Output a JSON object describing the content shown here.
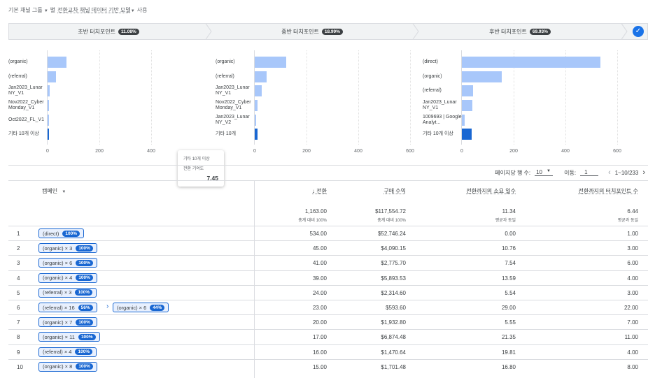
{
  "topbar": {
    "part1": "기본 채널 그룹",
    "part2": "별",
    "part3": "전환교차 채널 데이터 기반 모델",
    "part4": "사용"
  },
  "stages": [
    {
      "label": "초반 터치포인트",
      "pct": "11.08%"
    },
    {
      "label": "중반 터치포인트",
      "pct": "18.99%"
    },
    {
      "label": "후반 터치포인트",
      "pct": "69.93%"
    }
  ],
  "chart_data": [
    {
      "type": "bar",
      "categories": [
        "(organic)",
        "(referral)",
        "Jan2023_Lunar NY_V1",
        "Nov2022_Cyber Monday_V1",
        "Oct2022_FL_V1",
        "기타 10개 이상"
      ],
      "values": [
        72,
        33,
        8,
        3,
        2,
        5
      ],
      "xticks": [
        "0",
        "200",
        "400"
      ],
      "xlim": [
        0,
        600
      ]
    },
    {
      "type": "bar",
      "categories": [
        "(organic)",
        "(referral)",
        "Jan2023_Lunar NY_V1",
        "Nov2022_Cyber Monday_V1",
        "Jan2023_Lunar NY_V2",
        "기타 10개"
      ],
      "values": [
        122,
        46,
        28,
        10,
        6,
        10
      ],
      "xticks": [
        "0",
        "200",
        "400",
        "600"
      ],
      "xlim": [
        0,
        600
      ]
    },
    {
      "type": "bar",
      "categories": [
        "(direct)",
        "(organic)",
        "(referral)",
        "Jan2023_Lunar NY_V1",
        "1009693 | Google Analyt...",
        "기타 10개 이상"
      ],
      "values": [
        534,
        155,
        42,
        40,
        12,
        37
      ],
      "xticks": [
        "0",
        "200",
        "400",
        "600"
      ],
      "xlim": [
        0,
        600
      ]
    }
  ],
  "tooltip": {
    "title": "기타 10개 이상",
    "sub": "전환 기여도",
    "value": "7.45"
  },
  "pager": {
    "rows_label": "페이지당 행 수:",
    "rows_value": "10",
    "goto_label": "이동:",
    "goto_value": "1",
    "range": "1~10/233"
  },
  "table": {
    "col_campaign": "캠페인",
    "headers": [
      "↓ 전환",
      "구매 수익",
      "전환까지의 소요 일수",
      "전환까지의 터치포인트 수"
    ],
    "totals": [
      {
        "n": "1,163.00",
        "s": "총계 대비 100%"
      },
      {
        "n": "$117,554.72",
        "s": "총계 대비 100%"
      },
      {
        "n": "11.34",
        "s": "평균과 동일"
      },
      {
        "n": "6.44",
        "s": "평균과 동일"
      }
    ],
    "rows": [
      {
        "idx": "1",
        "chips": [
          {
            "t": "(direct)",
            "p": "100%"
          }
        ],
        "c": [
          "534.00",
          "$52,746.24",
          "0.00",
          "1.00"
        ]
      },
      {
        "idx": "2",
        "chips": [
          {
            "t": "(organic) × 3",
            "p": "100%"
          }
        ],
        "c": [
          "45.00",
          "$4,090.15",
          "10.76",
          "3.00"
        ]
      },
      {
        "idx": "3",
        "chips": [
          {
            "t": "(organic) × 6",
            "p": "100%"
          }
        ],
        "c": [
          "41.00",
          "$2,775.70",
          "7.54",
          "6.00"
        ]
      },
      {
        "idx": "4",
        "chips": [
          {
            "t": "(organic) × 4",
            "p": "100%"
          }
        ],
        "c": [
          "39.00",
          "$5,893.53",
          "13.59",
          "4.00"
        ]
      },
      {
        "idx": "5",
        "chips": [
          {
            "t": "(referral) × 3",
            "p": "100%"
          }
        ],
        "c": [
          "24.00",
          "$2,314.60",
          "5.54",
          "3.00"
        ]
      },
      {
        "idx": "6",
        "chips": [
          {
            "t": "(referral) × 16",
            "p": "56%"
          },
          {
            "t": "(organic) × 6",
            "p": "44%"
          }
        ],
        "c": [
          "23.00",
          "$593.60",
          "29.00",
          "22.00"
        ]
      },
      {
        "idx": "7",
        "chips": [
          {
            "t": "(organic) × 7",
            "p": "100%"
          }
        ],
        "c": [
          "20.00",
          "$1,932.80",
          "5.55",
          "7.00"
        ]
      },
      {
        "idx": "8",
        "chips": [
          {
            "t": "(organic) × 11",
            "p": "100%"
          }
        ],
        "c": [
          "17.00",
          "$6,874.48",
          "21.35",
          "11.00"
        ]
      },
      {
        "idx": "9",
        "chips": [
          {
            "t": "(referral) × 4",
            "p": "100%"
          }
        ],
        "c": [
          "16.00",
          "$1,470.64",
          "19.81",
          "4.00"
        ]
      },
      {
        "idx": "10",
        "chips": [
          {
            "t": "(organic) × 8",
            "p": "100%"
          }
        ],
        "c": [
          "15.00",
          "$1,701.48",
          "16.80",
          "8.00"
        ]
      }
    ]
  }
}
